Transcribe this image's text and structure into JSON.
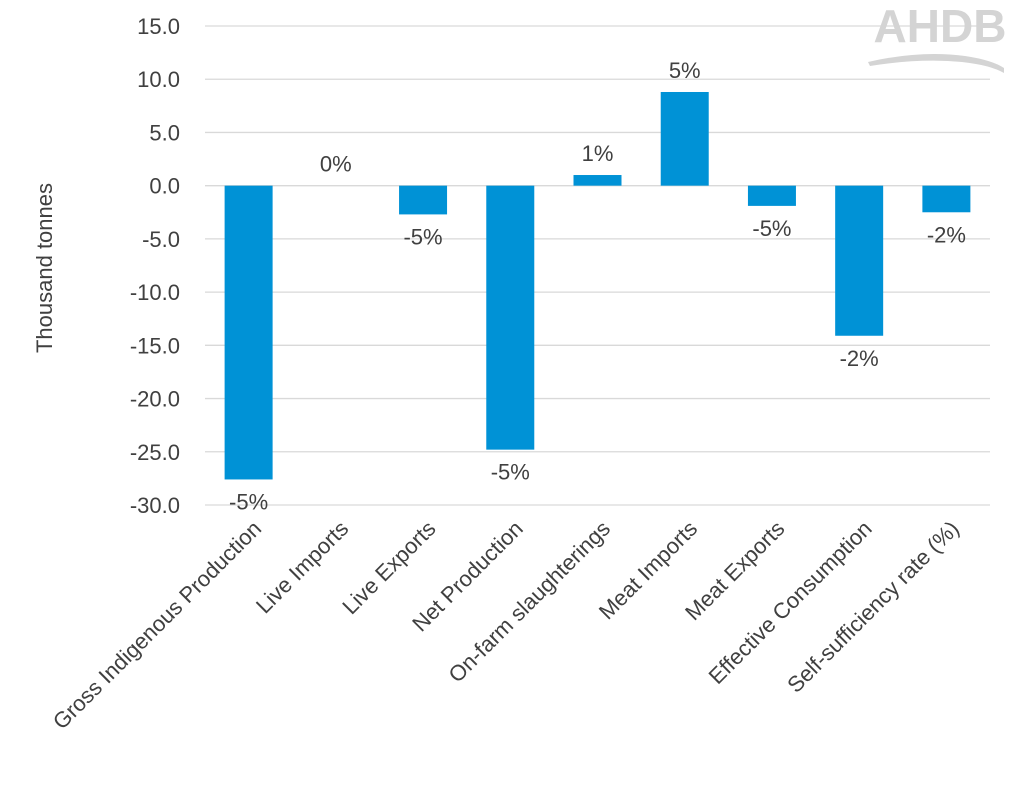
{
  "logo": {
    "text": "AHDB"
  },
  "chart_data": {
    "type": "bar",
    "title": "",
    "xlabel": "",
    "ylabel": "Thousand tonnes",
    "ylim": [
      -30,
      15
    ],
    "ytick_step": 5,
    "ytick_labels": [
      "15.0",
      "10.0",
      "5.0",
      "0.0",
      "-5.0",
      "-10.0",
      "-15.0",
      "-20.0",
      "-25.0",
      "-30.0"
    ],
    "grid": true,
    "legend": "none",
    "bar_color": "#0092d6",
    "categories": [
      "Gross Indigenous Production",
      "Live Imports",
      "Live Exports",
      "Net Production",
      "On-farm slaughterings",
      "Meat Imports",
      "Meat Exports",
      "Effective Consumption",
      "Self-sufficiency rate (%)"
    ],
    "values": [
      -27.6,
      0.0,
      -2.7,
      -24.8,
      1.0,
      8.8,
      -1.9,
      -14.1,
      -2.5
    ],
    "data_labels": [
      "-5%",
      "0%",
      "-5%",
      "-5%",
      "1%",
      "5%",
      "-5%",
      "-2%",
      "-2%"
    ]
  }
}
